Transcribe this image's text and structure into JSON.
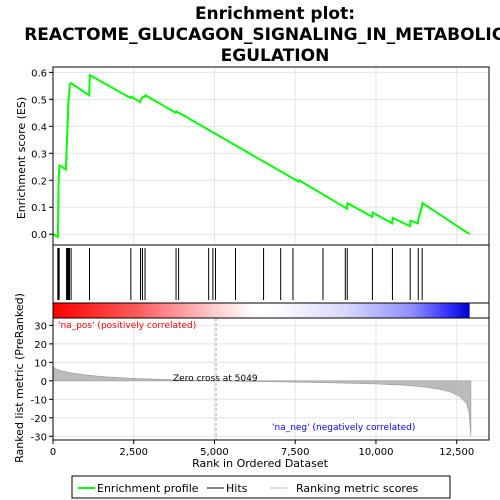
{
  "title_line1": "Enrichment plot:",
  "title_line2": "REACTOME_GLUCAGON_SIGNALING_IN_METABOLIC_R",
  "title_line3": "EGULATION",
  "chart_data": {
    "type": "line",
    "x_range": [
      0,
      13500
    ],
    "x_ticks": [
      "0",
      "2,500",
      "5,000",
      "7,500",
      "10,000",
      "12,500"
    ],
    "x_tick_values": [
      0,
      2500,
      5000,
      7500,
      10000,
      12500
    ],
    "xlabel": "Rank in Ordered Dataset",
    "es_panel": {
      "ylabel": "Enrichment score (ES)",
      "ylim": [
        -0.04,
        0.62
      ],
      "y_ticks": [
        "0.0",
        "0.1",
        "0.2",
        "0.3",
        "0.4",
        "0.5",
        "0.6"
      ],
      "y_tick_values": [
        0.0,
        0.1,
        0.2,
        0.3,
        0.4,
        0.5,
        0.6
      ],
      "series": [
        {
          "name": "Enrichment profile",
          "color": "#00ff00",
          "x": [
            0,
            150,
            160,
            170,
            180,
            200,
            400,
            420,
            440,
            460,
            480,
            500,
            520,
            560,
            1120,
            1140,
            2400,
            2420,
            2700,
            2720,
            2760,
            2780,
            2840,
            2860,
            3800,
            3820,
            3880,
            3900,
            7600,
            7620,
            9100,
            9120,
            9880,
            9900,
            10500,
            10520,
            11050,
            11070,
            11300,
            11320,
            11420,
            11440,
            12900
          ],
          "y": [
            0.0,
            -0.01,
            0.08,
            0.17,
            0.21,
            0.255,
            0.24,
            0.31,
            0.37,
            0.44,
            0.5,
            0.51,
            0.555,
            0.56,
            0.515,
            0.59,
            0.505,
            0.51,
            0.49,
            0.5,
            0.505,
            0.51,
            0.51,
            0.515,
            0.45,
            0.455,
            0.45,
            0.45,
            0.195,
            0.2,
            0.095,
            0.115,
            0.065,
            0.08,
            0.04,
            0.06,
            0.03,
            0.05,
            0.04,
            0.06,
            0.1,
            0.115,
            0.0
          ]
        }
      ]
    },
    "hits": [
      150,
      170,
      190,
      420,
      450,
      480,
      510,
      560,
      1130,
      2410,
      2710,
      2770,
      2850,
      3810,
      3890,
      4820,
      4950,
      5030,
      5650,
      6520,
      7050,
      7430,
      8360,
      9050,
      9110,
      9890,
      10510,
      11060,
      11310,
      11430
    ],
    "metric_panel": {
      "ylabel": "Ranked list metric (PreRanked)",
      "ylim": [
        -32,
        34
      ],
      "y_ticks": [
        "30",
        "20",
        "10",
        "0",
        "-10",
        "-20",
        "-30"
      ],
      "y_tick_values": [
        30,
        20,
        10,
        0,
        -10,
        -20,
        -30
      ],
      "x": [
        0,
        20,
        100,
        300,
        600,
        1000,
        1600,
        2500,
        3500,
        4500,
        5049,
        6000,
        7500,
        9000,
        10000,
        10800,
        11500,
        12000,
        12300,
        12600,
        12800,
        12880,
        12940
      ],
      "y": [
        8.5,
        7.5,
        6.3,
        5.2,
        4.2,
        3.2,
        2.2,
        1.3,
        0.7,
        0.25,
        0.0,
        -0.3,
        -0.7,
        -1.2,
        -1.7,
        -2.3,
        -3.3,
        -4.6,
        -6.0,
        -8.5,
        -12.0,
        -17.0,
        -30.0
      ]
    },
    "zero_cross_rank": 5049,
    "annotations": {
      "zero_cross": "Zero cross at 5049",
      "pos": "'na_pos' (positively correlated)",
      "neg": "'na_neg' (negatively correlated)"
    },
    "colors": {
      "es_line": "#00ff00",
      "hit": "#000000",
      "pos_text": "#ff0000",
      "neg_text": "#0000ff",
      "metric_fill": "#bbbbbb",
      "frame": "#000000",
      "zero_line": "#aaaaaa"
    },
    "legend": [
      {
        "label": "Enrichment profile",
        "color": "#00ff00"
      },
      {
        "label": "Hits",
        "color": "#000000"
      },
      {
        "label": "Ranking metric scores",
        "color": "#bbbbbb"
      }
    ]
  }
}
